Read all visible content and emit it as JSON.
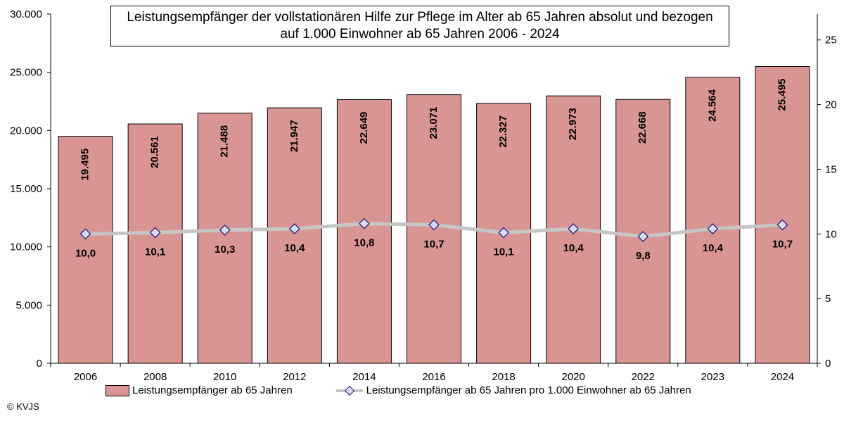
{
  "title": "Leistungsempfänger der vollstationären Hilfe zur Pflege im Alter ab 65 Jahren absolut und bezogen auf 1.000 Einwohner ab 65 Jahren 2006 - 2024",
  "copyright": "© KVJS",
  "colors": {
    "bar": "#d99594",
    "line": "#c6c6c6",
    "marker_fill": "#dcdcf0",
    "marker_stroke": "#1f1f7a"
  },
  "chart_data": {
    "type": "bar",
    "title": "Leistungsempfänger der vollstationären Hilfe zur Pflege im Alter ab 65 Jahren absolut und bezogen auf 1.000 Einwohner ab 65 Jahren 2006 - 2024",
    "categories": [
      "2006",
      "2008",
      "2010",
      "2012",
      "2014",
      "2016",
      "2018",
      "2020",
      "2022",
      "2023",
      "2024"
    ],
    "series": [
      {
        "name": "Leistungsempfänger ab 65 Jahren",
        "type": "bar",
        "axis": "left",
        "values": [
          19495,
          20561,
          21488,
          21947,
          22649,
          23071,
          22327,
          22973,
          22668,
          24564,
          25495
        ],
        "labels": [
          "19.495",
          "20.561",
          "21.488",
          "21.947",
          "22.649",
          "23.071",
          "22.327",
          "22.973",
          "22.668",
          "24.564",
          "25.495"
        ]
      },
      {
        "name": "Leistungsempfänger ab 65 Jahren pro 1.000 Einwohner ab 65 Jahren",
        "type": "line",
        "axis": "right",
        "values": [
          10.0,
          10.1,
          10.3,
          10.4,
          10.8,
          10.7,
          10.1,
          10.4,
          9.8,
          10.4,
          10.7
        ],
        "labels": [
          "10,0",
          "10,1",
          "10,3",
          "10,4",
          "10,8",
          "10,7",
          "10,1",
          "10,4",
          "9,8",
          "10,4",
          "10,7"
        ]
      }
    ],
    "y_left": {
      "min": 0,
      "max": 30000,
      "ticks": [
        "0",
        "5.000",
        "10.000",
        "15.000",
        "20.000",
        "25.000",
        "30.000"
      ]
    },
    "y_right": {
      "min": 0,
      "max": 27,
      "ticks": [
        "0",
        "5",
        "10",
        "15",
        "20",
        "25"
      ]
    },
    "legend_position": "bottom",
    "grid": false
  }
}
